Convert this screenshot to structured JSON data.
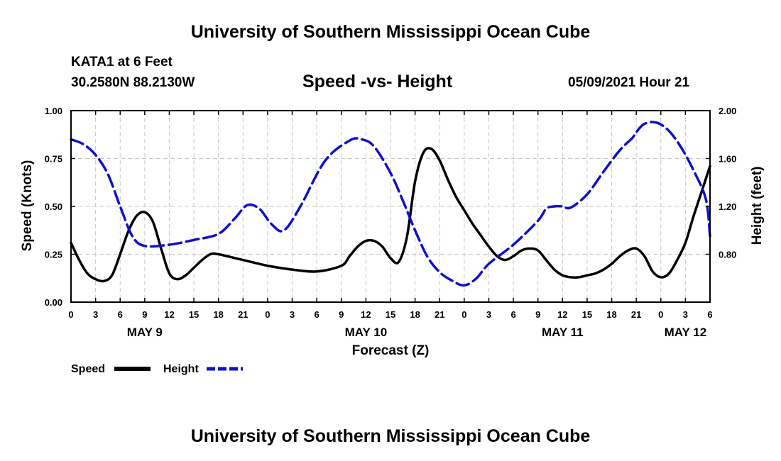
{
  "header": {
    "title_top": "University of Southern Mississippi Ocean Cube",
    "title_bottom": "University of Southern Mississippi Ocean Cube",
    "station_line1": "KATA1 at 6 Feet",
    "station_line2": "30.2580N  88.2130W",
    "date": "05/09/2021 Hour 21"
  },
  "colors": {
    "speed": "#000000",
    "height": "#1010cc",
    "grid": "#c8c8c8"
  },
  "chart_data": {
    "type": "line",
    "title": "Speed -vs- Height",
    "xlabel": "Forecast (Z)",
    "ylabel": "Speed (Knots)",
    "y2label": "Height (feet)",
    "x_unit": "hours since May 9 00Z",
    "xlim": [
      0,
      78
    ],
    "ylim": [
      0,
      1.0
    ],
    "y2lim": [
      0.4,
      2.0
    ],
    "x_ticks": [
      0,
      3,
      6,
      9,
      12,
      15,
      18,
      21,
      24,
      27,
      30,
      33,
      36,
      39,
      42,
      45,
      48,
      51,
      54,
      57,
      60,
      63,
      66,
      69,
      72,
      75,
      78
    ],
    "x_tick_labels": [
      "0",
      "3",
      "6",
      "9",
      "12",
      "15",
      "18",
      "21",
      "0",
      "3",
      "6",
      "9",
      "12",
      "15",
      "18",
      "21",
      "0",
      "3",
      "6",
      "9",
      "12",
      "15",
      "18",
      "21",
      "0",
      "3",
      "6"
    ],
    "y_ticks": [
      0.0,
      0.25,
      0.5,
      0.75,
      1.0
    ],
    "y_tick_labels": [
      "0.00",
      "0.25",
      "0.50",
      "0.75",
      "1.00"
    ],
    "y2_ticks": [
      0.8,
      1.2,
      1.6,
      2.0
    ],
    "y2_tick_labels": [
      "0.80",
      "1.20",
      "1.60",
      "2.00"
    ],
    "day_labels": [
      {
        "label": "MAY 9",
        "x": 9
      },
      {
        "label": "MAY 10",
        "x": 36
      },
      {
        "label": "MAY 11",
        "x": 60
      },
      {
        "label": "MAY 12",
        "x": 75
      }
    ],
    "legend": [
      {
        "name": "Speed",
        "style": "solid"
      },
      {
        "name": "Height",
        "style": "dashed"
      }
    ],
    "series": [
      {
        "name": "Speed",
        "axis": "left",
        "x": [
          0,
          1,
          2,
          3,
          4,
          5,
          6,
          7,
          8,
          9,
          10,
          11,
          12,
          13,
          14,
          15,
          16,
          17,
          18,
          21,
          24,
          27,
          30,
          33,
          34,
          35,
          36,
          37,
          38,
          39,
          40,
          41,
          42,
          43,
          44,
          45,
          46,
          47,
          48,
          49,
          50,
          51,
          52,
          53,
          54,
          55,
          56,
          57,
          58,
          59,
          60,
          61,
          62,
          63,
          64,
          65,
          66,
          67,
          68,
          69,
          70,
          71,
          72,
          73,
          74,
          75,
          76,
          77,
          78
        ],
        "values": [
          0.31,
          0.22,
          0.15,
          0.12,
          0.11,
          0.14,
          0.25,
          0.37,
          0.45,
          0.47,
          0.42,
          0.28,
          0.15,
          0.12,
          0.14,
          0.18,
          0.22,
          0.25,
          0.25,
          0.22,
          0.19,
          0.17,
          0.16,
          0.19,
          0.24,
          0.29,
          0.32,
          0.32,
          0.29,
          0.23,
          0.21,
          0.34,
          0.63,
          0.78,
          0.8,
          0.74,
          0.64,
          0.55,
          0.48,
          0.41,
          0.35,
          0.29,
          0.24,
          0.22,
          0.24,
          0.27,
          0.28,
          0.27,
          0.22,
          0.17,
          0.14,
          0.13,
          0.13,
          0.14,
          0.15,
          0.17,
          0.2,
          0.24,
          0.27,
          0.28,
          0.24,
          0.16,
          0.13,
          0.15,
          0.22,
          0.31,
          0.45,
          0.58,
          0.71
        ]
      },
      {
        "name": "Height",
        "axis": "right",
        "x": [
          0,
          1.5,
          3,
          4.5,
          6,
          7.5,
          9,
          12,
          15,
          18,
          20,
          21.5,
          23,
          24.5,
          26,
          28,
          31,
          34,
          35.5,
          37,
          39,
          40.5,
          42,
          43.5,
          45,
          46.5,
          48,
          49.5,
          51,
          54,
          57,
          58,
          59,
          60,
          61,
          63,
          65,
          67,
          68.5,
          69,
          70,
          71.5,
          73,
          74.5,
          76,
          77.5,
          78
        ],
        "values": [
          1.76,
          1.72,
          1.63,
          1.47,
          1.2,
          0.95,
          0.87,
          0.88,
          0.92,
          0.97,
          1.1,
          1.21,
          1.18,
          1.05,
          1.0,
          1.2,
          1.58,
          1.75,
          1.76,
          1.7,
          1.48,
          1.25,
          1.0,
          0.78,
          0.65,
          0.58,
          0.54,
          0.6,
          0.72,
          0.88,
          1.08,
          1.18,
          1.2,
          1.2,
          1.19,
          1.3,
          1.49,
          1.67,
          1.77,
          1.82,
          1.89,
          1.9,
          1.83,
          1.69,
          1.5,
          1.26,
          0.95
        ]
      }
    ]
  }
}
